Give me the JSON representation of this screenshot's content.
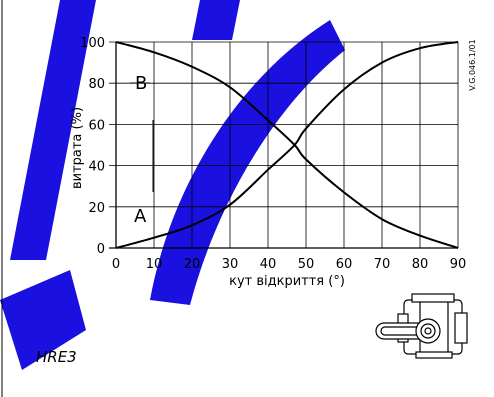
{
  "chart_data": {
    "type": "line",
    "xlabel": "кут відкриття (°)",
    "ylabel": "витрата (%)",
    "xlim": [
      0,
      90
    ],
    "ylim": [
      0,
      100
    ],
    "x_ticks": [
      "0",
      "10",
      "20",
      "30",
      "40",
      "50",
      "60",
      "70",
      "80",
      "90"
    ],
    "y_ticks": [
      "0",
      "20",
      "40",
      "60",
      "80",
      "100"
    ],
    "grid": true,
    "x": [
      0,
      10,
      20,
      30,
      40,
      47,
      50,
      60,
      70,
      80,
      90
    ],
    "series": [
      {
        "name": "A",
        "values": [
          0,
          5,
          11,
          21,
          38,
          50,
          58,
          77,
          90,
          97,
          100
        ]
      },
      {
        "name": "B",
        "values": [
          100,
          95,
          88,
          78,
          62,
          50,
          43,
          27,
          14,
          6,
          0
        ]
      }
    ],
    "annotations": {
      "code": "V.G.046.1/01",
      "model": "HRE3"
    }
  },
  "colors": {
    "watermark": "#1a10e0",
    "ink": "#000000"
  }
}
